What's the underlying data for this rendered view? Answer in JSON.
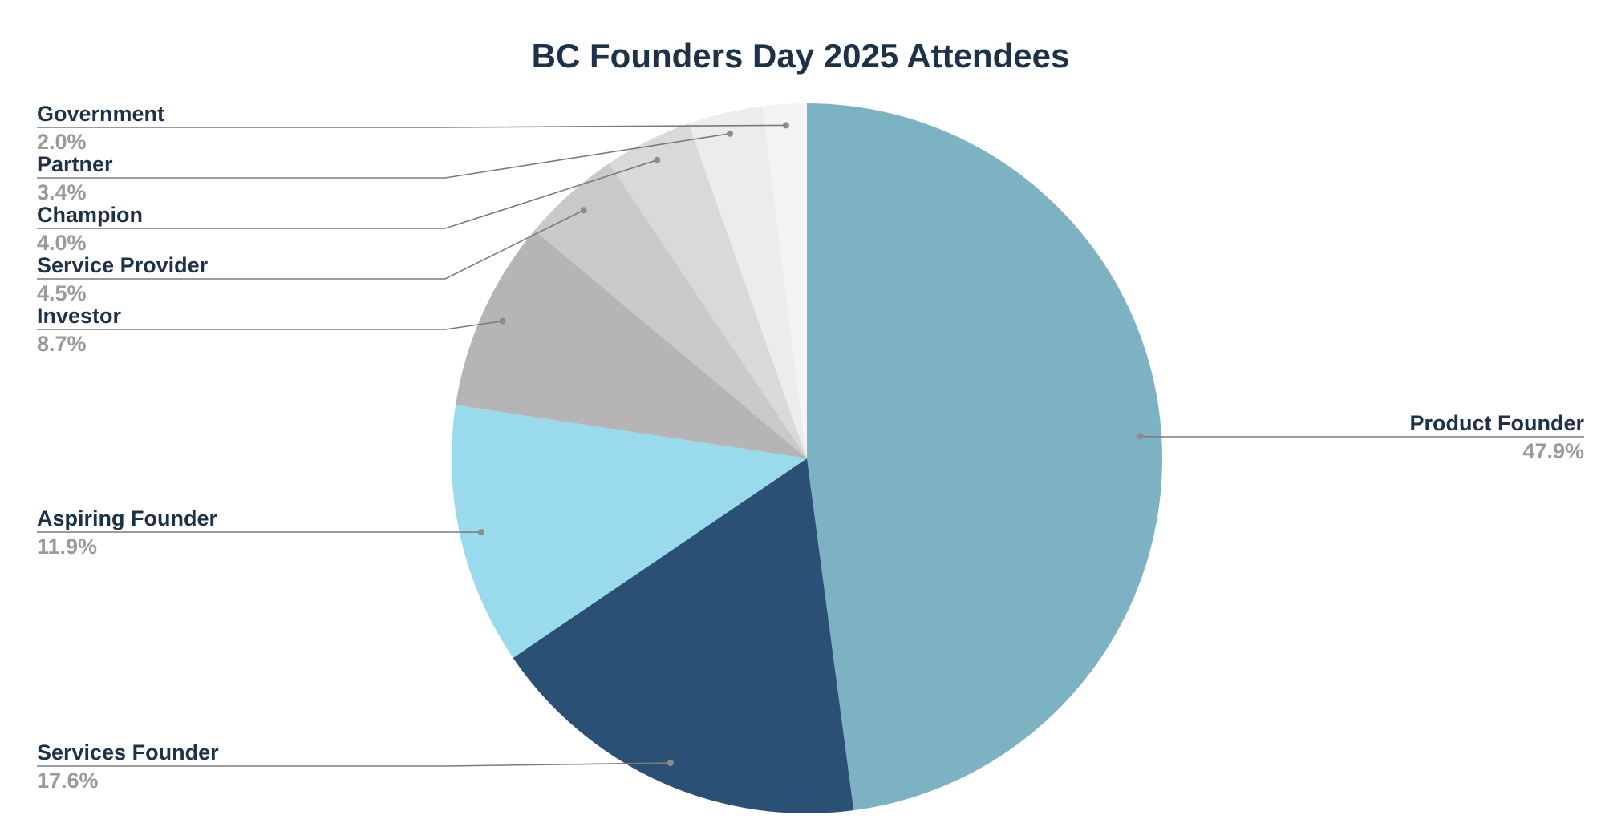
{
  "chart_data": {
    "type": "pie",
    "title": "BC Founders Day 2025 Attendees",
    "slices": [
      {
        "name": "Product Founder",
        "value": 47.9,
        "label": "47.9%",
        "color": "#7db2c3"
      },
      {
        "name": "Services Founder",
        "value": 17.6,
        "label": "17.6%",
        "color": "#2a5075"
      },
      {
        "name": "Aspiring Founder",
        "value": 11.9,
        "label": "11.9%",
        "color": "#99dbed"
      },
      {
        "name": "Investor",
        "value": 8.7,
        "label": "8.7%",
        "color": "#b5b5b5"
      },
      {
        "name": "Service Provider",
        "value": 4.5,
        "label": "4.5%",
        "color": "#c9c9c9"
      },
      {
        "name": "Champion",
        "value": 4.0,
        "label": "4.0%",
        "color": "#d9d9d9"
      },
      {
        "name": "Partner",
        "value": 3.4,
        "label": "3.4%",
        "color": "#ececec"
      },
      {
        "name": "Government",
        "value": 2.0,
        "label": "2.0%",
        "color": "#f4f4f4"
      }
    ],
    "start_angle": "12 o'clock",
    "direction": "clockwise",
    "label_style": "outside labels with leader lines, name above percentage"
  }
}
